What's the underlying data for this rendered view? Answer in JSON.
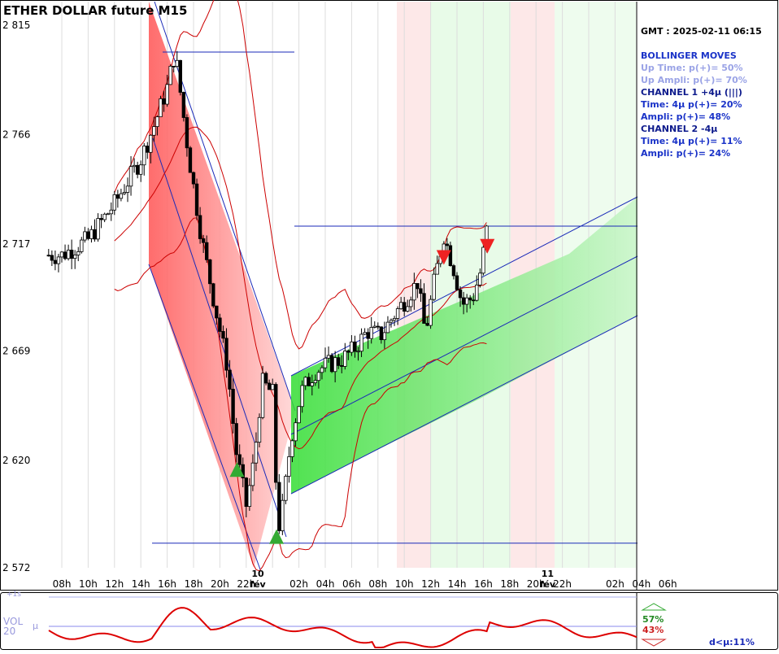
{
  "chart_data": {
    "type": "candlestick",
    "title": "ETHER DOLLAR future M15",
    "y_ticks": [
      "2 815",
      "2 766",
      "2 717",
      "2 669",
      "2 620",
      "2 572"
    ],
    "y_tick_values": [
      2815,
      2766,
      2717,
      2669,
      2620,
      2572
    ],
    "ylim": [
      2572,
      2815
    ],
    "x_ticks": [
      "08h",
      "10h",
      "12h",
      "14h",
      "16h",
      "18h",
      "20h",
      "22h",
      "02h",
      "04h",
      "06h",
      "08h",
      "10h",
      "12h",
      "14h",
      "16h",
      "18h",
      "20h",
      "22h",
      "02h",
      "04h",
      "06h"
    ],
    "day_labels": [
      {
        "day": "10",
        "month": "fév"
      },
      {
        "day": "11",
        "month": "fév"
      }
    ],
    "horizontal_levels": [
      2803,
      2725,
      2583
    ],
    "price_path": [
      {
        "t": 0,
        "p": 2712
      },
      {
        "t": 2,
        "p": 2719
      },
      {
        "t": 4,
        "p": 2735
      },
      {
        "t": 6,
        "p": 2755
      },
      {
        "t": 7,
        "p": 2770
      },
      {
        "t": 8,
        "p": 2787
      },
      {
        "t": 8.6,
        "p": 2803
      },
      {
        "t": 9.6,
        "p": 2758
      },
      {
        "t": 10.6,
        "p": 2720
      },
      {
        "t": 11.6,
        "p": 2690
      },
      {
        "t": 12.6,
        "p": 2661
      },
      {
        "t": 13.2,
        "p": 2625
      },
      {
        "t": 14.0,
        "p": 2600
      },
      {
        "t": 14.6,
        "p": 2620
      },
      {
        "t": 15.2,
        "p": 2655
      },
      {
        "t": 16.0,
        "p": 2650
      },
      {
        "t": 16.4,
        "p": 2588
      },
      {
        "t": 16.8,
        "p": 2600
      },
      {
        "t": 17.4,
        "p": 2630
      },
      {
        "t": 18.2,
        "p": 2651
      },
      {
        "t": 19.2,
        "p": 2660
      },
      {
        "t": 20.2,
        "p": 2663
      },
      {
        "t": 21.2,
        "p": 2665
      },
      {
        "t": 22.2,
        "p": 2670
      },
      {
        "t": 23.2,
        "p": 2678
      },
      {
        "t": 24.2,
        "p": 2676
      },
      {
        "t": 25.2,
        "p": 2685
      },
      {
        "t": 26.2,
        "p": 2693
      },
      {
        "t": 27.0,
        "p": 2700
      },
      {
        "t": 27.6,
        "p": 2677
      },
      {
        "t": 28.2,
        "p": 2698
      },
      {
        "t": 29.0,
        "p": 2721
      },
      {
        "t": 29.8,
        "p": 2705
      },
      {
        "t": 30.4,
        "p": 2690
      },
      {
        "t": 31.2,
        "p": 2693
      },
      {
        "t": 31.8,
        "p": 2705
      },
      {
        "t": 32.3,
        "p": 2725
      }
    ],
    "signals": [
      {
        "type": "buy",
        "t": 13.3,
        "p": 2616
      },
      {
        "type": "buy",
        "t": 16.3,
        "p": 2586
      },
      {
        "type": "sell",
        "t": 29.0,
        "p": 2711
      },
      {
        "type": "sell",
        "t": 32.3,
        "p": 2716
      }
    ],
    "volume": {
      "levels": [
        "+1s",
        "μ"
      ],
      "label": "VOL\n20",
      "mu_label": "μ",
      "up_pct": "57%",
      "down_pct": "43%",
      "footer": "d<μ:11%"
    }
  },
  "info_panel": {
    "gmt": "GMT : 2025-02-11 06:15",
    "lines": [
      {
        "text": "BOLLINGER MOVES",
        "color": "#1a33c8",
        "bold": true
      },
      {
        "text": "Up Time: p(+)= 50%",
        "color": "#9aa3e6",
        "bold": true
      },
      {
        "text": "Up Ampli: p(+)= 70%",
        "color": "#9aa3e6",
        "bold": true
      },
      {
        "text": "CHANNEL 1 +4μ (|||)",
        "color": "#0d1a8c",
        "bold": true
      },
      {
        "text": "Time: 4μ p(+)=  20%",
        "color": "#1a33c8",
        "bold": true
      },
      {
        "text": "Ampli:  p(+)=  48%",
        "color": "#1a33c8",
        "bold": true
      },
      {
        "text": "CHANNEL 2 -4μ",
        "color": "#0d1a8c",
        "bold": true
      },
      {
        "text": "Time: 4μ p(+)=  11%",
        "color": "#1a33c8",
        "bold": true
      },
      {
        "text": "Ampli:  p(+)=  24%",
        "color": "#1a33c8",
        "bold": true
      }
    ]
  },
  "colors": {
    "bull_candle": "#ffffff",
    "bear_candle": "#000000",
    "channel_down": "#ff6666",
    "channel_up": "#44dd44",
    "bollinger": "#cc0000",
    "level_line": "#1a2ab8",
    "buy_arrow": "#33aa33",
    "sell_arrow": "#ee2222",
    "volume_line": "#dd0000",
    "volume_mu": "#8888ee"
  }
}
